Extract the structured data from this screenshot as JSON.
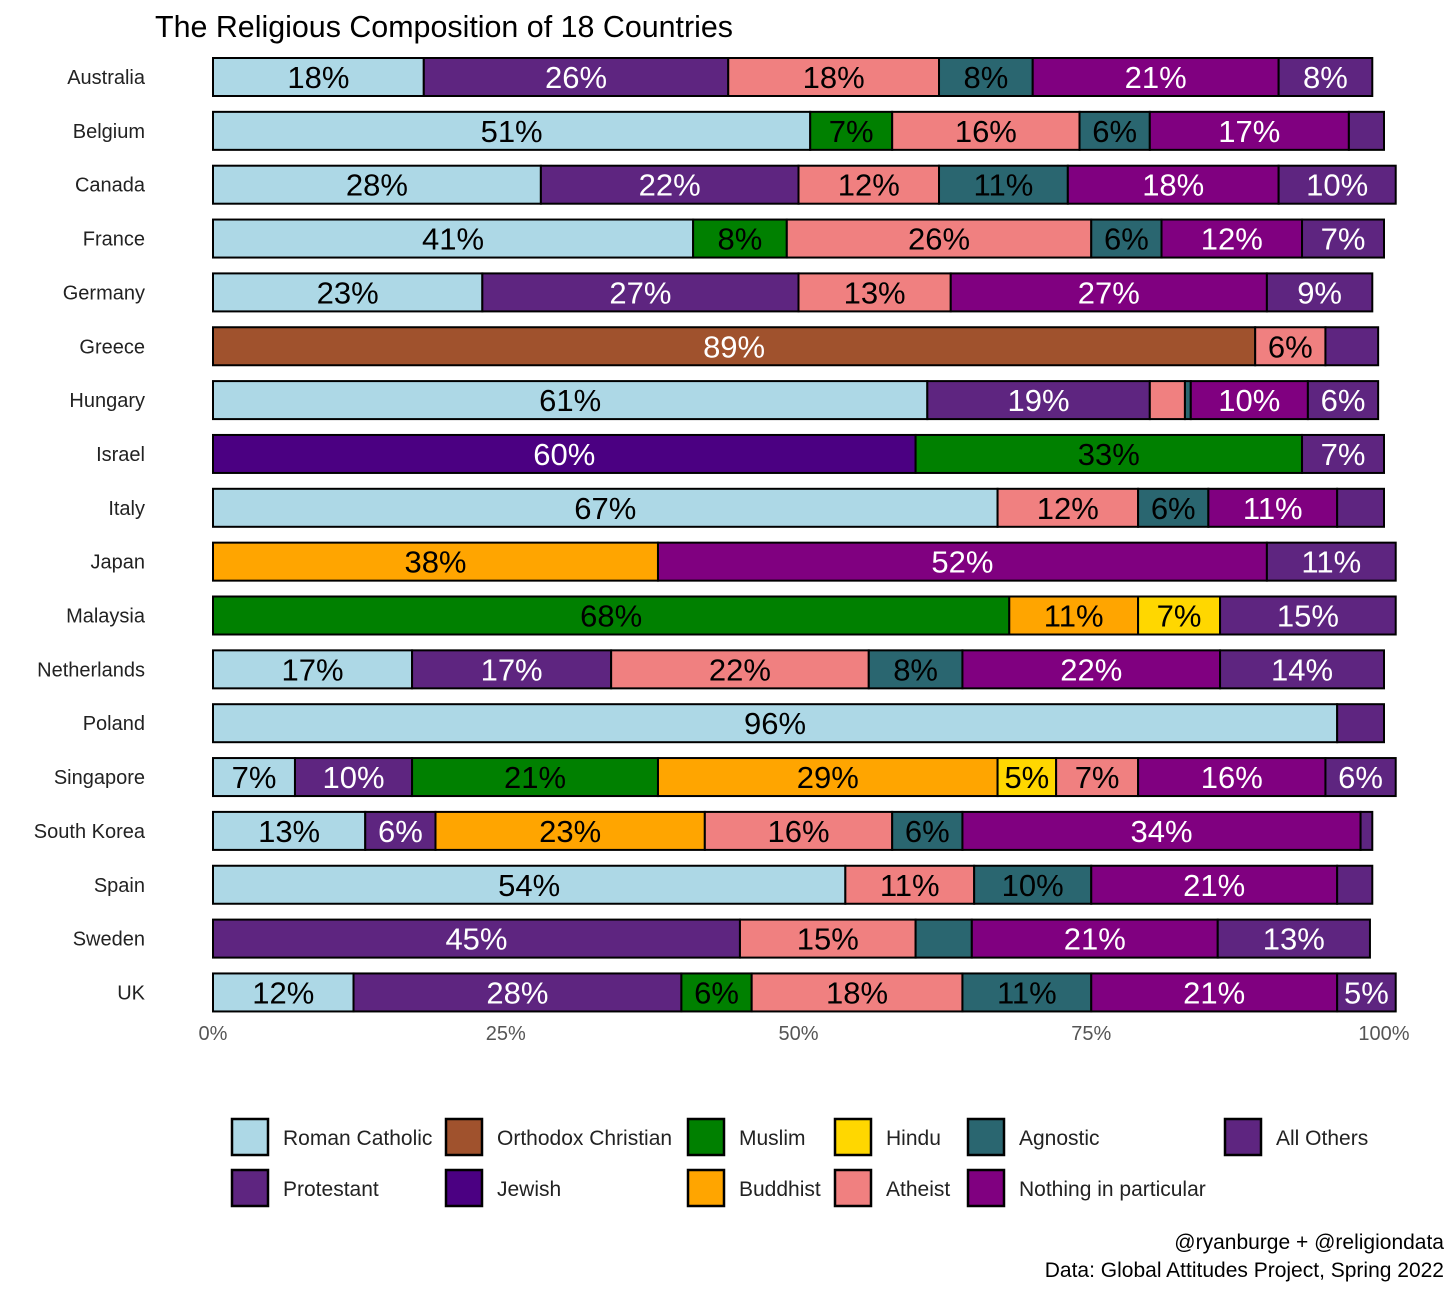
{
  "chart_data": {
    "type": "bar",
    "orientation": "horizontal-stacked",
    "title": "The Religious Composition of 18 Countries",
    "xlabel": "",
    "ylabel": "",
    "xlim": [
      0,
      100
    ],
    "x_ticks": [
      "0%",
      "25%",
      "50%",
      "75%",
      "100%"
    ],
    "x_tick_values": [
      0,
      25,
      50,
      75,
      100
    ],
    "grid": false,
    "legend_position": "bottom",
    "categories_order": [
      "Roman Catholic",
      "Orthodox Christian",
      "Muslim",
      "Hindu",
      "Agnostic",
      "All Others",
      "Protestant",
      "Jewish",
      "Buddhist",
      "Atheist",
      "Nothing in particular"
    ],
    "stack_order": [
      "Roman Catholic",
      "Orthodox Christian",
      "Protestant",
      "Jewish",
      "Muslim",
      "Buddhist",
      "Hindu",
      "Atheist",
      "Agnostic",
      "Nothing in particular",
      "All Others"
    ],
    "legend": [
      {
        "name": "Roman Catholic",
        "color": "#ADD8E6"
      },
      {
        "name": "Protestant",
        "color": "#5E2580"
      },
      {
        "name": "Orthodox Christian",
        "color": "#A0522D"
      },
      {
        "name": "Jewish",
        "color": "#4B0082"
      },
      {
        "name": "Muslim",
        "color": "#008000"
      },
      {
        "name": "Buddhist",
        "color": "#FFA500"
      },
      {
        "name": "Hindu",
        "color": "#FFD700"
      },
      {
        "name": "Atheist",
        "color": "#F08080"
      },
      {
        "name": "Agnostic",
        "color": "#2A6670"
      },
      {
        "name": "Nothing in particular",
        "color": "#800080"
      },
      {
        "name": "All Others",
        "color": "#5E2580"
      }
    ],
    "countries": [
      {
        "name": "Australia",
        "segments": [
          [
            "Roman Catholic",
            18
          ],
          [
            "Protestant",
            26
          ],
          [
            "Atheist",
            18
          ],
          [
            "Agnostic",
            8
          ],
          [
            "Nothing in particular",
            21
          ],
          [
            "All Others",
            8
          ]
        ]
      },
      {
        "name": "Belgium",
        "segments": [
          [
            "Roman Catholic",
            51
          ],
          [
            "Muslim",
            7
          ],
          [
            "Atheist",
            16
          ],
          [
            "Agnostic",
            6
          ],
          [
            "Nothing in particular",
            17
          ],
          [
            "All Others",
            3
          ]
        ]
      },
      {
        "name": "Canada",
        "segments": [
          [
            "Roman Catholic",
            28
          ],
          [
            "Protestant",
            22
          ],
          [
            "Atheist",
            12
          ],
          [
            "Agnostic",
            11
          ],
          [
            "Nothing in particular",
            18
          ],
          [
            "All Others",
            10
          ]
        ]
      },
      {
        "name": "France",
        "segments": [
          [
            "Roman Catholic",
            41
          ],
          [
            "Muslim",
            8
          ],
          [
            "Atheist",
            26
          ],
          [
            "Agnostic",
            6
          ],
          [
            "Nothing in particular",
            12
          ],
          [
            "All Others",
            7
          ]
        ]
      },
      {
        "name": "Germany",
        "segments": [
          [
            "Roman Catholic",
            23
          ],
          [
            "Protestant",
            27
          ],
          [
            "Atheist",
            13
          ],
          [
            "Nothing in particular",
            27
          ],
          [
            "All Others",
            9
          ]
        ]
      },
      {
        "name": "Greece",
        "segments": [
          [
            "Orthodox Christian",
            89
          ],
          [
            "Atheist",
            6
          ],
          [
            "All Others",
            4.5
          ]
        ]
      },
      {
        "name": "Hungary",
        "segments": [
          [
            "Roman Catholic",
            61
          ],
          [
            "Protestant",
            19
          ],
          [
            "Atheist",
            3
          ],
          [
            "Agnostic",
            0.5
          ],
          [
            "Nothing in particular",
            10
          ],
          [
            "All Others",
            6
          ]
        ]
      },
      {
        "name": "Israel",
        "segments": [
          [
            "Jewish",
            60
          ],
          [
            "Muslim",
            33
          ],
          [
            "All Others",
            7
          ]
        ]
      },
      {
        "name": "Italy",
        "segments": [
          [
            "Roman Catholic",
            67
          ],
          [
            "Atheist",
            12
          ],
          [
            "Agnostic",
            6
          ],
          [
            "Nothing in particular",
            11
          ],
          [
            "All Others",
            4
          ]
        ]
      },
      {
        "name": "Japan",
        "segments": [
          [
            "Buddhist",
            38
          ],
          [
            "Nothing in particular",
            52
          ],
          [
            "All Others",
            11
          ]
        ]
      },
      {
        "name": "Malaysia",
        "segments": [
          [
            "Muslim",
            68
          ],
          [
            "Buddhist",
            11
          ],
          [
            "Hindu",
            7
          ],
          [
            "All Others",
            15
          ]
        ]
      },
      {
        "name": "Netherlands",
        "segments": [
          [
            "Roman Catholic",
            17
          ],
          [
            "Protestant",
            17
          ],
          [
            "Atheist",
            22
          ],
          [
            "Agnostic",
            8
          ],
          [
            "Nothing in particular",
            22
          ],
          [
            "All Others",
            14
          ]
        ]
      },
      {
        "name": "Poland",
        "segments": [
          [
            "Roman Catholic",
            96
          ],
          [
            "All Others",
            4
          ]
        ]
      },
      {
        "name": "Singapore",
        "segments": [
          [
            "Roman Catholic",
            7
          ],
          [
            "Protestant",
            10
          ],
          [
            "Muslim",
            21
          ],
          [
            "Buddhist",
            29
          ],
          [
            "Hindu",
            5
          ],
          [
            "Atheist",
            7
          ],
          [
            "Nothing in particular",
            16
          ],
          [
            "All Others",
            6
          ]
        ]
      },
      {
        "name": "South Korea",
        "segments": [
          [
            "Roman Catholic",
            13
          ],
          [
            "Protestant",
            6
          ],
          [
            "Buddhist",
            23
          ],
          [
            "Atheist",
            16
          ],
          [
            "Agnostic",
            6
          ],
          [
            "Nothing in particular",
            34
          ],
          [
            "All Others",
            1
          ]
        ]
      },
      {
        "name": "Spain",
        "segments": [
          [
            "Roman Catholic",
            54
          ],
          [
            "Atheist",
            11
          ],
          [
            "Agnostic",
            10
          ],
          [
            "Nothing in particular",
            21
          ],
          [
            "All Others",
            3
          ]
        ]
      },
      {
        "name": "Sweden",
        "segments": [
          [
            "Protestant",
            45
          ],
          [
            "Atheist",
            15
          ],
          [
            "Agnostic",
            4.8
          ],
          [
            "Nothing in particular",
            21
          ],
          [
            "All Others",
            13
          ]
        ]
      },
      {
        "name": "UK",
        "segments": [
          [
            "Roman Catholic",
            12
          ],
          [
            "Protestant",
            28
          ],
          [
            "Muslim",
            6
          ],
          [
            "Atheist",
            18
          ],
          [
            "Agnostic",
            11
          ],
          [
            "Nothing in particular",
            21
          ],
          [
            "All Others",
            5
          ]
        ]
      }
    ],
    "caption": [
      "@ryanburge + @religiondata",
      "Data: Global Attitudes Project, Spring 2022"
    ]
  }
}
